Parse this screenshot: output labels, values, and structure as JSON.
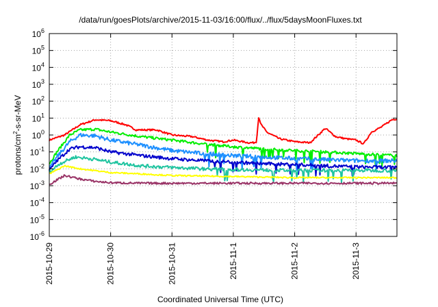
{
  "chart_data": {
    "type": "line",
    "title": "/data/run/goesPlots/archive/2015-11-03/16:00/flux/../flux/5daysMoonFluxes.txt",
    "xlabel": "Coordinated Universal Time (UTC)",
    "ylabel": {
      "base": "protons/cm",
      "sup": "2",
      "rest": "-s-sr-MeV"
    },
    "y_scale": "log",
    "ylim": [
      1e-06,
      1000000.0
    ],
    "xlim": [
      "2015-10-29T00:00",
      "2015-11-03T16:00"
    ],
    "y_ticks": [
      {
        "value": 1e-06,
        "base": "10",
        "exp": "-6"
      },
      {
        "value": 1e-05,
        "base": "10",
        "exp": "-5"
      },
      {
        "value": 0.0001,
        "base": "10",
        "exp": "-4"
      },
      {
        "value": 0.001,
        "base": "10",
        "exp": "-3"
      },
      {
        "value": 0.01,
        "base": "10",
        "exp": "-2"
      },
      {
        "value": 0.1,
        "base": "10",
        "exp": "-1"
      },
      {
        "value": 1,
        "base": "10",
        "exp": "0"
      },
      {
        "value": 10,
        "base": "10",
        "exp": "1"
      },
      {
        "value": 100,
        "base": "10",
        "exp": "2"
      },
      {
        "value": 1000,
        "base": "10",
        "exp": "3"
      },
      {
        "value": 10000,
        "base": "10",
        "exp": "4"
      },
      {
        "value": 100000,
        "base": "10",
        "exp": "5"
      },
      {
        "value": 1000000,
        "base": "10",
        "exp": "6"
      }
    ],
    "x_ticks": [
      {
        "value": "2015-10-29T00:00",
        "label": "2015-10-29"
      },
      {
        "value": "2015-10-30T00:00",
        "label": "2015-10-30"
      },
      {
        "value": "2015-10-31T00:00",
        "label": "2015-10-31"
      },
      {
        "value": "2015-11-01T00:00",
        "label": "2015-11-1"
      },
      {
        "value": "2015-11-02T00:00",
        "label": "2015-11-2"
      },
      {
        "value": "2015-11-03T00:00",
        "label": "2015-11-3"
      }
    ],
    "grid": true,
    "legend": "none",
    "series": [
      {
        "color": "#ff0000",
        "noise": 0.05,
        "points": [
          [
            "2015-10-29T00:00",
            0.5
          ],
          [
            "2015-10-29T06:00",
            1.0
          ],
          [
            "2015-10-29T12:00",
            4
          ],
          [
            "2015-10-29T18:00",
            8
          ],
          [
            "2015-10-30T00:00",
            7
          ],
          [
            "2015-10-30T06:00",
            4
          ],
          [
            "2015-10-30T10:00",
            2
          ],
          [
            "2015-10-30T18:00",
            2
          ],
          [
            "2015-10-31T00:00",
            1.0
          ],
          [
            "2015-10-31T08:00",
            0.8
          ],
          [
            "2015-10-31T14:00",
            0.5
          ],
          [
            "2015-10-31T20:00",
            0.4
          ],
          [
            "2015-11-01T00:00",
            0.5
          ],
          [
            "2015-11-01T06:00",
            0.35
          ],
          [
            "2015-11-01T08:00",
            0.35
          ],
          [
            "2015-11-01T09:00",
            0.4
          ],
          [
            "2015-11-01T10:00",
            15
          ],
          [
            "2015-11-01T10:30",
            5
          ],
          [
            "2015-11-01T13:00",
            1.5
          ],
          [
            "2015-11-01T18:00",
            0.6
          ],
          [
            "2015-11-02T00:00",
            0.4
          ],
          [
            "2015-11-02T06:00",
            0.35
          ],
          [
            "2015-11-02T12:00",
            2.5
          ],
          [
            "2015-11-02T16:00",
            0.8
          ],
          [
            "2015-11-02T20:00",
            0.6
          ],
          [
            "2015-11-03T00:00",
            0.5
          ],
          [
            "2015-11-03T03:00",
            0.3
          ],
          [
            "2015-11-03T06:00",
            1.5
          ],
          [
            "2015-11-03T10:00",
            3
          ],
          [
            "2015-11-03T14:00",
            8
          ],
          [
            "2015-11-03T16:00",
            9
          ]
        ]
      },
      {
        "color": "#00ee00",
        "noise": 0.08,
        "points": [
          [
            "2015-10-29T00:00",
            0.02
          ],
          [
            "2015-10-29T03:00",
            0.1
          ],
          [
            "2015-10-29T08:00",
            1.0
          ],
          [
            "2015-10-29T12:00",
            2
          ],
          [
            "2015-10-29T18:00",
            2.2
          ],
          [
            "2015-10-30T00:00",
            1.5
          ],
          [
            "2015-10-30T12:00",
            0.8
          ],
          [
            "2015-10-31T00:00",
            0.5
          ],
          [
            "2015-10-31T12:00",
            0.3
          ],
          [
            "2015-11-01T00:00",
            0.2
          ],
          [
            "2015-11-01T12:00",
            0.15
          ],
          [
            "2015-11-02T00:00",
            0.12
          ],
          [
            "2015-11-02T12:00",
            0.1
          ],
          [
            "2015-11-03T00:00",
            0.08
          ],
          [
            "2015-11-03T16:00",
            0.06
          ]
        ]
      },
      {
        "color": "#1e90ff",
        "noise": 0.12,
        "points": [
          [
            "2015-10-29T00:00",
            0.01
          ],
          [
            "2015-10-29T03:00",
            0.05
          ],
          [
            "2015-10-29T08:00",
            0.4
          ],
          [
            "2015-10-29T12:00",
            1.0
          ],
          [
            "2015-10-29T18:00",
            0.9
          ],
          [
            "2015-10-30T00:00",
            0.5
          ],
          [
            "2015-10-30T12:00",
            0.25
          ],
          [
            "2015-10-31T00:00",
            0.12
          ],
          [
            "2015-10-31T12:00",
            0.08
          ],
          [
            "2015-11-01T00:00",
            0.06
          ],
          [
            "2015-11-01T12:00",
            0.05
          ],
          [
            "2015-11-02T00:00",
            0.04
          ],
          [
            "2015-11-02T12:00",
            0.035
          ],
          [
            "2015-11-03T00:00",
            0.03
          ],
          [
            "2015-11-03T16:00",
            0.03
          ]
        ]
      },
      {
        "color": "#0000cc",
        "noise": 0.1,
        "points": [
          [
            "2015-10-29T00:00",
            0.008
          ],
          [
            "2015-10-29T03:00",
            0.03
          ],
          [
            "2015-10-29T08:00",
            0.15
          ],
          [
            "2015-10-29T12:00",
            0.2
          ],
          [
            "2015-10-29T18:00",
            0.18
          ],
          [
            "2015-10-30T00:00",
            0.1
          ],
          [
            "2015-10-30T12:00",
            0.06
          ],
          [
            "2015-10-31T00:00",
            0.04
          ],
          [
            "2015-10-31T12:00",
            0.03
          ],
          [
            "2015-11-01T00:00",
            0.025
          ],
          [
            "2015-11-01T12:00",
            0.02
          ],
          [
            "2015-11-02T00:00",
            0.018
          ],
          [
            "2015-11-02T12:00",
            0.015
          ],
          [
            "2015-11-03T00:00",
            0.013
          ],
          [
            "2015-11-03T16:00",
            0.012
          ]
        ]
      },
      {
        "color": "#20c4a0",
        "noise": 0.1,
        "points": [
          [
            "2015-10-29T00:00",
            0.006
          ],
          [
            "2015-10-29T04:00",
            0.02
          ],
          [
            "2015-10-29T10:00",
            0.05
          ],
          [
            "2015-10-29T16:00",
            0.04
          ],
          [
            "2015-10-30T00:00",
            0.025
          ],
          [
            "2015-10-30T12:00",
            0.015
          ],
          [
            "2015-10-31T00:00",
            0.012
          ],
          [
            "2015-10-31T12:00",
            0.01
          ],
          [
            "2015-11-01T00:00",
            0.009
          ],
          [
            "2015-11-02T00:00",
            0.008
          ],
          [
            "2015-11-03T00:00",
            0.008
          ],
          [
            "2015-11-03T16:00",
            0.008
          ]
        ]
      },
      {
        "color": "#ffff00",
        "noise": 0.04,
        "points": [
          [
            "2015-10-29T00:00",
            0.005
          ],
          [
            "2015-10-29T06:00",
            0.015
          ],
          [
            "2015-10-29T12:00",
            0.01
          ],
          [
            "2015-10-30T00:00",
            0.006
          ],
          [
            "2015-10-30T12:00",
            0.005
          ],
          [
            "2015-10-31T00:00",
            0.004
          ],
          [
            "2015-11-01T00:00",
            0.0035
          ],
          [
            "2015-11-02T00:00",
            0.003
          ],
          [
            "2015-11-03T00:00",
            0.003
          ],
          [
            "2015-11-03T16:00",
            0.003
          ]
        ]
      },
      {
        "color": "#993366",
        "noise": 0.06,
        "points": [
          [
            "2015-10-29T00:00",
            0.0012
          ],
          [
            "2015-10-29T06:00",
            0.004
          ],
          [
            "2015-10-29T12:00",
            0.0025
          ],
          [
            "2015-10-29T18:00",
            0.0018
          ],
          [
            "2015-10-30T00:00",
            0.0015
          ],
          [
            "2015-10-30T12:00",
            0.0014
          ],
          [
            "2015-11-03T16:00",
            0.0014
          ]
        ]
      }
    ]
  }
}
